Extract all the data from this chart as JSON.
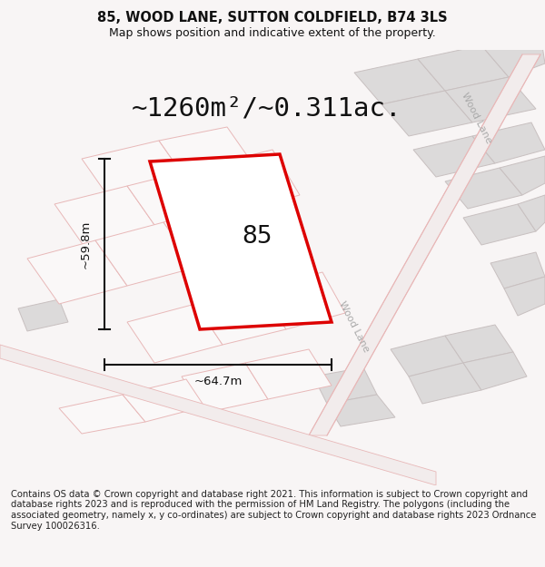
{
  "title": "85, WOOD LANE, SUTTON COLDFIELD, B74 3LS",
  "subtitle": "Map shows position and indicative extent of the property.",
  "area_text": "~1260m²/~0.311ac.",
  "label_85": "85",
  "dim_width": "~64.7m",
  "dim_height": "~59.8m",
  "road_label_mid": "Wood Lane",
  "road_label_top": "Wood Lane",
  "footer": "Contains OS data © Crown copyright and database right 2021. This information is subject to Crown copyright and database rights 2023 and is reproduced with the permission of HM Land Registry. The polygons (including the associated geometry, namely x, y co-ordinates) are subject to Crown copyright and database rights 2023 Ordnance Survey 100026316.",
  "bg_color": "#f8f5f5",
  "map_bg_color": "#faf8f8",
  "highlight_color": "#dd0000",
  "neighbor_fill": "#dcdada",
  "neighbor_stroke": "#c8c0c0",
  "road_outline_color": "#e8b8b8",
  "dim_color": "#111111",
  "text_color": "#111111",
  "road_label_color": "#aaaaaa",
  "title_fontsize": 10.5,
  "subtitle_fontsize": 9,
  "area_fontsize": 21,
  "label_fontsize": 19,
  "footer_fontsize": 7.2,
  "dim_fontsize": 9.5,
  "road_label_fontsize": 8
}
